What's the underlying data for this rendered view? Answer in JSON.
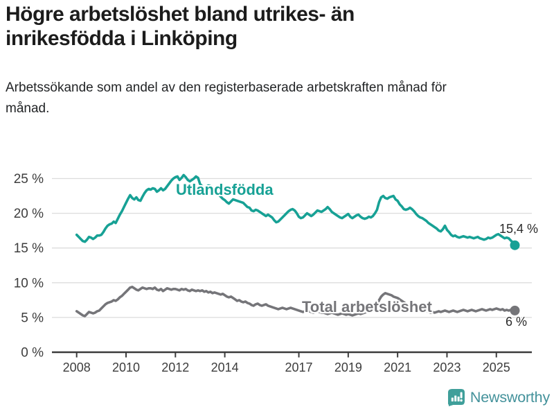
{
  "header": {
    "title": "Högre arbetslöshet bland utrikes- än inrikesfödda i Linköping",
    "subtitle": "Arbetssökande som andel av den registerbaserade arbetskraften månad för månad."
  },
  "chart_data": {
    "type": "line",
    "x_unit": "month",
    "x_start": "2008-01",
    "x_end": "2025-10",
    "ylim": [
      0,
      26
    ],
    "grid": "horizontal",
    "legend_position": "inline-labels",
    "y_ticks": [
      {
        "value": 0,
        "label": "0 %"
      },
      {
        "value": 5,
        "label": "5 %"
      },
      {
        "value": 10,
        "label": "10 %"
      },
      {
        "value": 15,
        "label": "15 %"
      },
      {
        "value": 20,
        "label": "20 %"
      },
      {
        "value": 25,
        "label": "25 %"
      }
    ],
    "x_ticks": [
      {
        "year": 2008,
        "label": "2008"
      },
      {
        "year": 2010,
        "label": "2010"
      },
      {
        "year": 2012,
        "label": "2012"
      },
      {
        "year": 2014,
        "label": "2014"
      },
      {
        "year": 2017,
        "label": "2017"
      },
      {
        "year": 2019,
        "label": "2019"
      },
      {
        "year": 2021,
        "label": "2021"
      },
      {
        "year": 2023,
        "label": "2023"
      },
      {
        "year": 2025,
        "label": "2025"
      }
    ],
    "series": [
      {
        "name": "Utlandsfödda",
        "color": "#17a195",
        "end_label": "15,4 %",
        "end_value": 15.4,
        "values": [
          16.9,
          16.6,
          16.3,
          16.0,
          15.9,
          16.2,
          16.6,
          16.5,
          16.3,
          16.5,
          16.8,
          16.8,
          16.9,
          17.3,
          17.8,
          18.2,
          18.4,
          18.5,
          18.8,
          18.6,
          19.2,
          19.8,
          20.3,
          20.9,
          21.5,
          22.1,
          22.6,
          22.2,
          22.0,
          22.3,
          21.9,
          21.8,
          22.4,
          22.9,
          23.3,
          23.5,
          23.4,
          23.6,
          23.5,
          23.1,
          23.3,
          23.6,
          23.3,
          23.5,
          23.9,
          24.3,
          24.7,
          25.0,
          25.2,
          25.3,
          24.8,
          25.1,
          25.5,
          25.2,
          24.8,
          24.6,
          24.8,
          25.0,
          25.3,
          25.1,
          24.2,
          23.9,
          23.7,
          23.8,
          24.0,
          23.9,
          23.6,
          23.3,
          23.0,
          22.7,
          22.4,
          22.1,
          21.9,
          21.6,
          21.4,
          21.7,
          22.0,
          21.9,
          21.8,
          21.7,
          21.6,
          21.5,
          21.2,
          20.9,
          20.8,
          20.4,
          20.3,
          20.5,
          20.4,
          20.2,
          20.0,
          19.8,
          19.6,
          19.8,
          19.6,
          19.4,
          19.0,
          18.7,
          18.8,
          19.1,
          19.4,
          19.7,
          20.0,
          20.3,
          20.5,
          20.6,
          20.4,
          20.0,
          19.5,
          19.3,
          19.4,
          19.7,
          20.0,
          19.8,
          19.6,
          19.8,
          20.1,
          20.4,
          20.3,
          20.2,
          20.4,
          20.6,
          20.9,
          20.6,
          20.2,
          20.0,
          19.8,
          19.6,
          19.4,
          19.3,
          19.5,
          19.7,
          19.9,
          19.5,
          19.3,
          19.5,
          19.7,
          19.8,
          19.5,
          19.3,
          19.2,
          19.3,
          19.5,
          19.4,
          19.6,
          20.0,
          20.5,
          21.6,
          22.3,
          22.5,
          22.2,
          22.1,
          22.3,
          22.4,
          22.5,
          22.0,
          21.8,
          21.3,
          21.0,
          20.6,
          20.5,
          20.6,
          20.8,
          20.6,
          20.3,
          19.9,
          19.6,
          19.4,
          19.3,
          19.1,
          18.9,
          18.6,
          18.4,
          18.2,
          18.0,
          17.8,
          17.5,
          17.4,
          17.7,
          18.2,
          17.6,
          17.3,
          16.9,
          16.7,
          16.8,
          16.6,
          16.5,
          16.6,
          16.7,
          16.6,
          16.5,
          16.6,
          16.5,
          16.4,
          16.5,
          16.6,
          16.4,
          16.3,
          16.2,
          16.3,
          16.5,
          16.4,
          16.5,
          16.7,
          16.9,
          17.0,
          16.8,
          16.6,
          16.4,
          16.5,
          16.4,
          16.1,
          15.8,
          15.4
        ]
      },
      {
        "name": "Total arbetslöshet",
        "color": "#757579",
        "end_label": "6 %",
        "end_value": 6.0,
        "values": [
          5.9,
          5.7,
          5.5,
          5.3,
          5.2,
          5.5,
          5.8,
          5.7,
          5.6,
          5.7,
          5.9,
          6.0,
          6.3,
          6.6,
          6.9,
          7.1,
          7.2,
          7.3,
          7.5,
          7.4,
          7.6,
          7.9,
          8.1,
          8.4,
          8.7,
          9.0,
          9.3,
          9.4,
          9.2,
          9.0,
          8.9,
          9.1,
          9.3,
          9.2,
          9.1,
          9.2,
          9.2,
          9.1,
          9.3,
          9.0,
          8.9,
          9.1,
          8.8,
          9.0,
          9.2,
          9.1,
          9.0,
          9.1,
          9.1,
          9.0,
          8.9,
          9.1,
          9.0,
          9.1,
          8.9,
          8.8,
          9.0,
          8.9,
          8.8,
          8.9,
          8.8,
          8.9,
          8.7,
          8.8,
          8.6,
          8.7,
          8.5,
          8.6,
          8.5,
          8.4,
          8.3,
          8.4,
          8.2,
          8.0,
          7.9,
          8.0,
          7.8,
          7.6,
          7.4,
          7.5,
          7.3,
          7.2,
          7.3,
          7.1,
          7.0,
          6.8,
          6.7,
          6.9,
          7.0,
          6.8,
          6.7,
          6.8,
          6.9,
          6.7,
          6.6,
          6.5,
          6.4,
          6.3,
          6.2,
          6.3,
          6.4,
          6.3,
          6.2,
          6.3,
          6.4,
          6.3,
          6.2,
          6.1,
          6.0,
          5.9,
          5.8,
          5.9,
          6.0,
          5.9,
          5.8,
          5.7,
          5.8,
          5.9,
          5.8,
          5.7,
          5.7,
          5.6,
          5.5,
          5.6,
          5.7,
          5.6,
          5.5,
          5.4,
          5.5,
          5.6,
          5.5,
          5.4,
          5.5,
          5.4,
          5.3,
          5.4,
          5.5,
          5.6,
          5.5,
          5.6,
          5.7,
          5.8,
          5.9,
          6.0,
          6.1,
          6.3,
          6.8,
          7.5,
          8.0,
          8.3,
          8.5,
          8.4,
          8.3,
          8.2,
          8.0,
          7.9,
          7.8,
          7.6,
          7.4,
          7.2,
          7.0,
          6.9,
          6.8,
          6.6,
          6.5,
          6.4,
          6.3,
          6.2,
          6.1,
          6.0,
          5.9,
          5.8,
          5.7,
          5.8,
          5.7,
          5.8,
          5.9,
          5.8,
          5.9,
          6.0,
          5.9,
          5.8,
          5.9,
          6.0,
          5.9,
          5.8,
          5.9,
          6.0,
          6.1,
          6.0,
          5.9,
          6.0,
          6.1,
          6.0,
          5.9,
          6.0,
          6.1,
          6.2,
          6.1,
          6.0,
          6.1,
          6.2,
          6.1,
          6.2,
          6.3,
          6.2,
          6.1,
          6.2,
          6.0,
          6.1,
          6.0,
          6.1,
          6.0,
          6.0
        ]
      }
    ]
  },
  "footer": {
    "brand": "Newsworthy",
    "logo_icon": "newsworthy-chart-bubble-icon"
  },
  "colors": {
    "title": "#1c1c1c",
    "subtitle": "#222426",
    "axis_text": "#3d3d3d",
    "axis_line": "#3b3b3b",
    "gridline": "#dcdcdc",
    "series_utlandsfodda": "#17a195",
    "series_total": "#757579",
    "end_label_text": "#2b2b2b",
    "logo_icon": "#3f9f9a",
    "logo_text": "#44929b"
  }
}
